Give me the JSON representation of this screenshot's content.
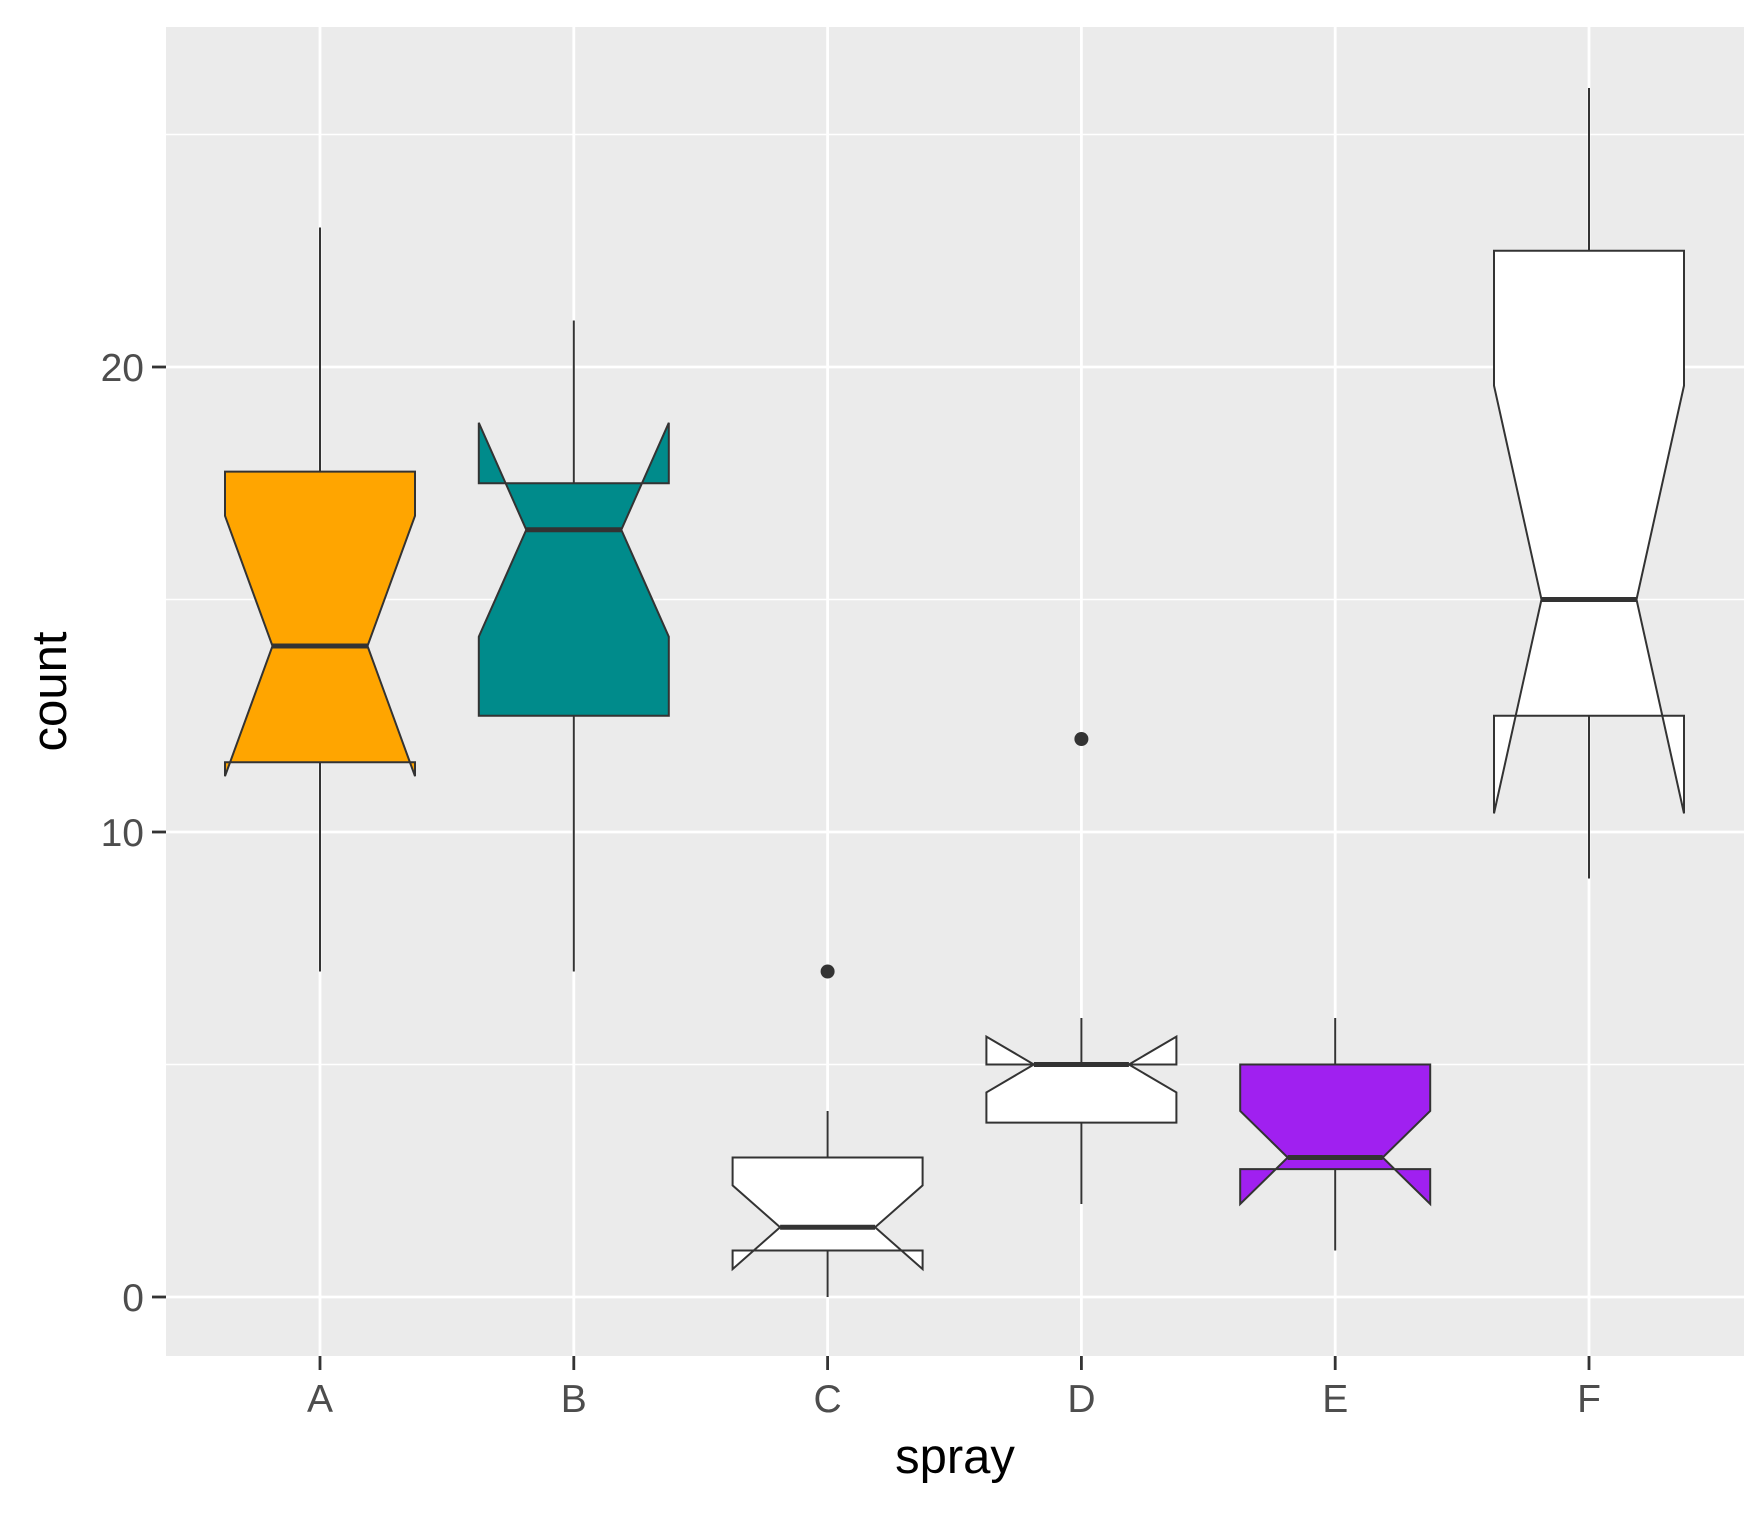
{
  "chart_data": {
    "type": "boxplot",
    "notched": true,
    "xlabel": "spray",
    "ylabel": "count",
    "categories": [
      "A",
      "B",
      "C",
      "D",
      "E",
      "F"
    ],
    "y_ticks": [
      0,
      10,
      20
    ],
    "y_tick_labels": [
      "0",
      "10",
      "20"
    ],
    "ylim": [
      -1.3,
      27.3
    ],
    "grid": true,
    "panel_color": "#EBEBEB",
    "box_outline_color": "#333333",
    "boxes": [
      {
        "category": "A",
        "whisker_low": 7,
        "q1": 11.5,
        "median": 14,
        "q3": 17.75,
        "whisker_high": 23,
        "notch_low": 11.2,
        "notch_high": 16.8,
        "outliers": [],
        "fill": "#FFA500"
      },
      {
        "category": "B",
        "whisker_low": 7,
        "q1": 12.5,
        "median": 16.5,
        "q3": 17.5,
        "whisker_high": 21,
        "notch_low": 14.2,
        "notch_high": 18.8,
        "outliers": [],
        "fill": "#008B8B"
      },
      {
        "category": "C",
        "whisker_low": 0,
        "q1": 1,
        "median": 1.5,
        "q3": 3,
        "whisker_high": 4,
        "notch_low": 0.6,
        "notch_high": 2.4,
        "outliers": [
          7
        ],
        "fill": "#FFFFFF"
      },
      {
        "category": "D",
        "whisker_low": 2,
        "q1": 3.75,
        "median": 5,
        "q3": 5,
        "whisker_high": 6,
        "notch_low": 4.4,
        "notch_high": 5.6,
        "outliers": [
          12
        ],
        "fill": "#FFFFFF"
      },
      {
        "category": "E",
        "whisker_low": 1,
        "q1": 2.75,
        "median": 3,
        "q3": 5,
        "whisker_high": 6,
        "notch_low": 2.0,
        "notch_high": 4.0,
        "outliers": [],
        "fill": "#A020F0"
      },
      {
        "category": "F",
        "whisker_low": 9,
        "q1": 12.5,
        "median": 15,
        "q3": 22.5,
        "whisker_high": 26,
        "notch_low": 10.4,
        "notch_high": 19.6,
        "outliers": [],
        "fill": "#FFFFFF"
      }
    ]
  }
}
